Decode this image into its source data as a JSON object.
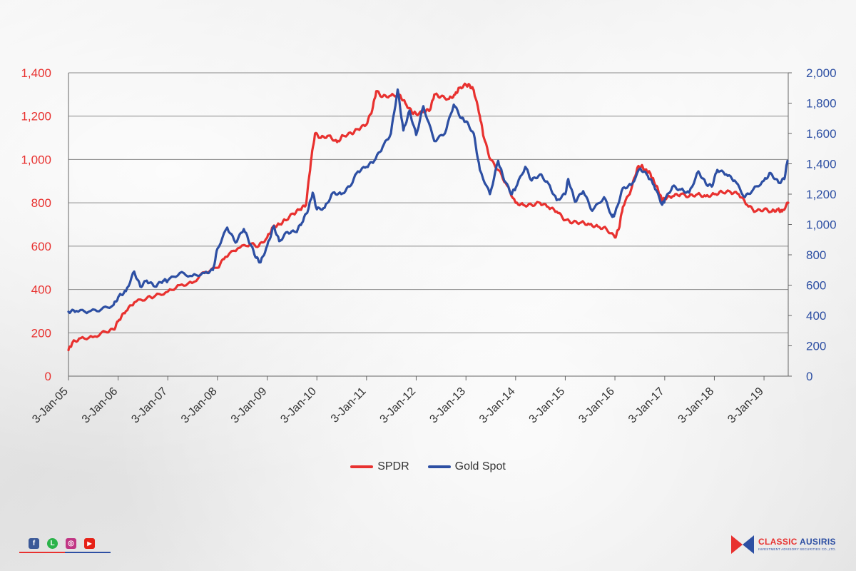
{
  "chart_data": {
    "type": "line",
    "x_ticks": [
      "3-Jan-05",
      "3-Jan-06",
      "3-Jan-07",
      "3-Jan-08",
      "3-Jan-09",
      "3-Jan-10",
      "3-Jan-11",
      "3-Jan-12",
      "3-Jan-13",
      "3-Jan-14",
      "3-Jan-15",
      "3-Jan-16",
      "3-Jan-17",
      "3-Jan-18",
      "3-Jan-19"
    ],
    "x_range": [
      "2005-01-03",
      "2019-06-30"
    ],
    "y_left": {
      "range": [
        0,
        1400
      ],
      "ticks": [
        "0",
        "200",
        "400",
        "600",
        "800",
        "1,000",
        "1,200",
        "1,400"
      ],
      "color": "#e8312f"
    },
    "y_right": {
      "range": [
        0,
        2000
      ],
      "ticks": [
        "0",
        "200",
        "400",
        "600",
        "800",
        "1,000",
        "1,200",
        "1,400",
        "1,600",
        "1,800",
        "2,000"
      ],
      "color": "#2d4fa3"
    },
    "grid": true,
    "legend": "bottom-center",
    "series": [
      {
        "name": "SPDR",
        "axis": "left",
        "color": "#e8312f",
        "points": [
          [
            "2005-01-03",
            120
          ],
          [
            "2005-02-01",
            155
          ],
          [
            "2005-04-01",
            175
          ],
          [
            "2005-07-01",
            180
          ],
          [
            "2005-10-01",
            205
          ],
          [
            "2005-12-01",
            215
          ],
          [
            "2006-01-10",
            260
          ],
          [
            "2006-03-01",
            300
          ],
          [
            "2006-05-01",
            340
          ],
          [
            "2006-08-01",
            360
          ],
          [
            "2006-10-01",
            370
          ],
          [
            "2007-01-03",
            390
          ],
          [
            "2007-04-01",
            420
          ],
          [
            "2007-07-01",
            430
          ],
          [
            "2007-10-01",
            480
          ],
          [
            "2008-01-03",
            500
          ],
          [
            "2008-03-01",
            550
          ],
          [
            "2008-06-01",
            590
          ],
          [
            "2008-09-01",
            610
          ],
          [
            "2008-11-01",
            600
          ],
          [
            "2009-01-03",
            640
          ],
          [
            "2009-02-15",
            690
          ],
          [
            "2009-04-01",
            700
          ],
          [
            "2009-05-15",
            720
          ],
          [
            "2009-07-15",
            750
          ],
          [
            "2009-09-01",
            770
          ],
          [
            "2009-10-15",
            790
          ],
          [
            "2009-11-20",
            990
          ],
          [
            "2009-12-20",
            1120
          ],
          [
            "2010-02-01",
            1100
          ],
          [
            "2010-04-01",
            1110
          ],
          [
            "2010-06-01",
            1080
          ],
          [
            "2010-07-15",
            1110
          ],
          [
            "2010-09-15",
            1120
          ],
          [
            "2010-11-01",
            1140
          ],
          [
            "2011-01-01",
            1160
          ],
          [
            "2011-02-15",
            1230
          ],
          [
            "2011-03-15",
            1315
          ],
          [
            "2011-05-01",
            1290
          ],
          [
            "2011-07-01",
            1295
          ],
          [
            "2011-09-01",
            1300
          ],
          [
            "2011-10-15",
            1260
          ],
          [
            "2011-12-01",
            1220
          ],
          [
            "2012-01-03",
            1210
          ],
          [
            "2012-03-01",
            1220
          ],
          [
            "2012-04-15",
            1230
          ],
          [
            "2012-05-15",
            1300
          ],
          [
            "2012-07-01",
            1290
          ],
          [
            "2012-09-01",
            1280
          ],
          [
            "2012-10-15",
            1300
          ],
          [
            "2012-11-15",
            1330
          ],
          [
            "2013-01-03",
            1345
          ],
          [
            "2013-02-01",
            1340
          ],
          [
            "2013-03-01",
            1320
          ],
          [
            "2013-04-15",
            1200
          ],
          [
            "2013-05-15",
            1100
          ],
          [
            "2013-07-01",
            1000
          ],
          [
            "2013-09-01",
            950
          ],
          [
            "2013-11-01",
            880
          ],
          [
            "2014-01-03",
            800
          ],
          [
            "2014-03-01",
            790
          ],
          [
            "2014-05-01",
            790
          ],
          [
            "2014-07-01",
            800
          ],
          [
            "2014-09-01",
            780
          ],
          [
            "2014-11-01",
            760
          ],
          [
            "2015-01-03",
            720
          ],
          [
            "2015-03-01",
            710
          ],
          [
            "2015-05-01",
            710
          ],
          [
            "2015-07-01",
            700
          ],
          [
            "2015-09-01",
            690
          ],
          [
            "2015-11-01",
            680
          ],
          [
            "2016-01-03",
            640
          ],
          [
            "2016-02-01",
            680
          ],
          [
            "2016-03-01",
            780
          ],
          [
            "2016-05-01",
            860
          ],
          [
            "2016-06-15",
            960
          ],
          [
            "2016-07-15",
            970
          ],
          [
            "2016-08-15",
            950
          ],
          [
            "2016-09-15",
            940
          ],
          [
            "2016-10-15",
            900
          ],
          [
            "2016-11-15",
            860
          ],
          [
            "2016-12-15",
            810
          ],
          [
            "2017-01-03",
            820
          ],
          [
            "2017-03-01",
            830
          ],
          [
            "2017-05-01",
            840
          ],
          [
            "2017-07-01",
            830
          ],
          [
            "2017-09-01",
            840
          ],
          [
            "2017-11-01",
            830
          ],
          [
            "2018-01-03",
            840
          ],
          [
            "2018-03-01",
            850
          ],
          [
            "2018-05-01",
            850
          ],
          [
            "2018-07-01",
            840
          ],
          [
            "2018-09-01",
            790
          ],
          [
            "2018-11-01",
            760
          ],
          [
            "2019-01-03",
            770
          ],
          [
            "2019-03-01",
            760
          ],
          [
            "2019-04-15",
            770
          ],
          [
            "2019-05-15",
            760
          ],
          [
            "2019-06-30",
            800
          ]
        ]
      },
      {
        "name": "Gold Spot",
        "axis": "right",
        "color": "#2d4fa3",
        "points": [
          [
            "2005-01-03",
            425
          ],
          [
            "2005-03-01",
            430
          ],
          [
            "2005-06-01",
            425
          ],
          [
            "2005-09-01",
            440
          ],
          [
            "2005-12-01",
            470
          ],
          [
            "2006-01-10",
            530
          ],
          [
            "2006-03-01",
            560
          ],
          [
            "2006-05-01",
            690
          ],
          [
            "2006-06-15",
            590
          ],
          [
            "2006-08-01",
            630
          ],
          [
            "2006-10-01",
            590
          ],
          [
            "2006-12-01",
            630
          ],
          [
            "2007-01-03",
            630
          ],
          [
            "2007-04-01",
            680
          ],
          [
            "2007-07-01",
            660
          ],
          [
            "2007-10-01",
            680
          ],
          [
            "2007-12-01",
            700
          ],
          [
            "2008-01-03",
            840
          ],
          [
            "2008-03-15",
            980
          ],
          [
            "2008-05-15",
            880
          ],
          [
            "2008-07-15",
            970
          ],
          [
            "2008-09-01",
            870
          ],
          [
            "2008-10-15",
            780
          ],
          [
            "2008-11-15",
            750
          ],
          [
            "2009-01-03",
            860
          ],
          [
            "2009-02-20",
            990
          ],
          [
            "2009-04-01",
            890
          ],
          [
            "2009-06-01",
            950
          ],
          [
            "2009-08-01",
            950
          ],
          [
            "2009-09-15",
            1010
          ],
          [
            "2009-11-01",
            1100
          ],
          [
            "2009-12-03",
            1210
          ],
          [
            "2010-01-03",
            1100
          ],
          [
            "2010-03-01",
            1110
          ],
          [
            "2010-05-01",
            1210
          ],
          [
            "2010-07-01",
            1200
          ],
          [
            "2010-09-01",
            1250
          ],
          [
            "2010-11-01",
            1350
          ],
          [
            "2011-01-03",
            1380
          ],
          [
            "2011-03-01",
            1420
          ],
          [
            "2011-05-01",
            1510
          ],
          [
            "2011-07-01",
            1600
          ],
          [
            "2011-08-20",
            1890
          ],
          [
            "2011-10-01",
            1620
          ],
          [
            "2011-11-15",
            1750
          ],
          [
            "2012-01-03",
            1590
          ],
          [
            "2012-02-25",
            1780
          ],
          [
            "2012-05-15",
            1550
          ],
          [
            "2012-08-01",
            1600
          ],
          [
            "2012-10-05",
            1790
          ],
          [
            "2012-12-01",
            1700
          ],
          [
            "2013-01-03",
            1680
          ],
          [
            "2013-03-01",
            1600
          ],
          [
            "2013-04-15",
            1360
          ],
          [
            "2013-06-28",
            1200
          ],
          [
            "2013-08-28",
            1420
          ],
          [
            "2013-10-01",
            1320
          ],
          [
            "2013-12-01",
            1200
          ],
          [
            "2014-01-03",
            1240
          ],
          [
            "2014-03-15",
            1380
          ],
          [
            "2014-05-01",
            1290
          ],
          [
            "2014-07-01",
            1330
          ],
          [
            "2014-09-01",
            1270
          ],
          [
            "2014-11-01",
            1160
          ],
          [
            "2015-01-03",
            1200
          ],
          [
            "2015-01-25",
            1300
          ],
          [
            "2015-03-15",
            1150
          ],
          [
            "2015-05-15",
            1220
          ],
          [
            "2015-07-20",
            1090
          ],
          [
            "2015-10-15",
            1180
          ],
          [
            "2015-12-15",
            1050
          ],
          [
            "2016-01-03",
            1070
          ],
          [
            "2016-03-01",
            1240
          ],
          [
            "2016-05-01",
            1260
          ],
          [
            "2016-07-08",
            1370
          ],
          [
            "2016-09-01",
            1320
          ],
          [
            "2016-10-15",
            1260
          ],
          [
            "2016-12-15",
            1130
          ],
          [
            "2017-01-03",
            1160
          ],
          [
            "2017-03-01",
            1250
          ],
          [
            "2017-05-01",
            1230
          ],
          [
            "2017-07-01",
            1210
          ],
          [
            "2017-09-08",
            1350
          ],
          [
            "2017-11-01",
            1270
          ],
          [
            "2017-12-15",
            1250
          ],
          [
            "2018-01-25",
            1360
          ],
          [
            "2018-04-01",
            1330
          ],
          [
            "2018-06-01",
            1290
          ],
          [
            "2018-08-15",
            1180
          ],
          [
            "2018-10-15",
            1230
          ],
          [
            "2019-01-03",
            1290
          ],
          [
            "2019-02-20",
            1340
          ],
          [
            "2019-04-20",
            1275
          ],
          [
            "2019-06-01",
            1300
          ],
          [
            "2019-06-25",
            1420
          ]
        ]
      }
    ]
  },
  "social": {
    "icons": [
      {
        "name": "facebook-icon",
        "glyph": "f",
        "color": "#3b5998"
      },
      {
        "name": "line-icon",
        "glyph": "L",
        "color": "#2bb34a"
      },
      {
        "name": "instagram-icon",
        "glyph": "◎",
        "color": "#c13584"
      },
      {
        "name": "youtube-icon",
        "glyph": "▶",
        "color": "#e62117"
      }
    ]
  },
  "brand": {
    "name_part1": "CLASSIC",
    "name_part2": "AUSIRIS",
    "subtitle": "INVESTMENT ADVISORY SECURITIES CO.,LTD."
  }
}
